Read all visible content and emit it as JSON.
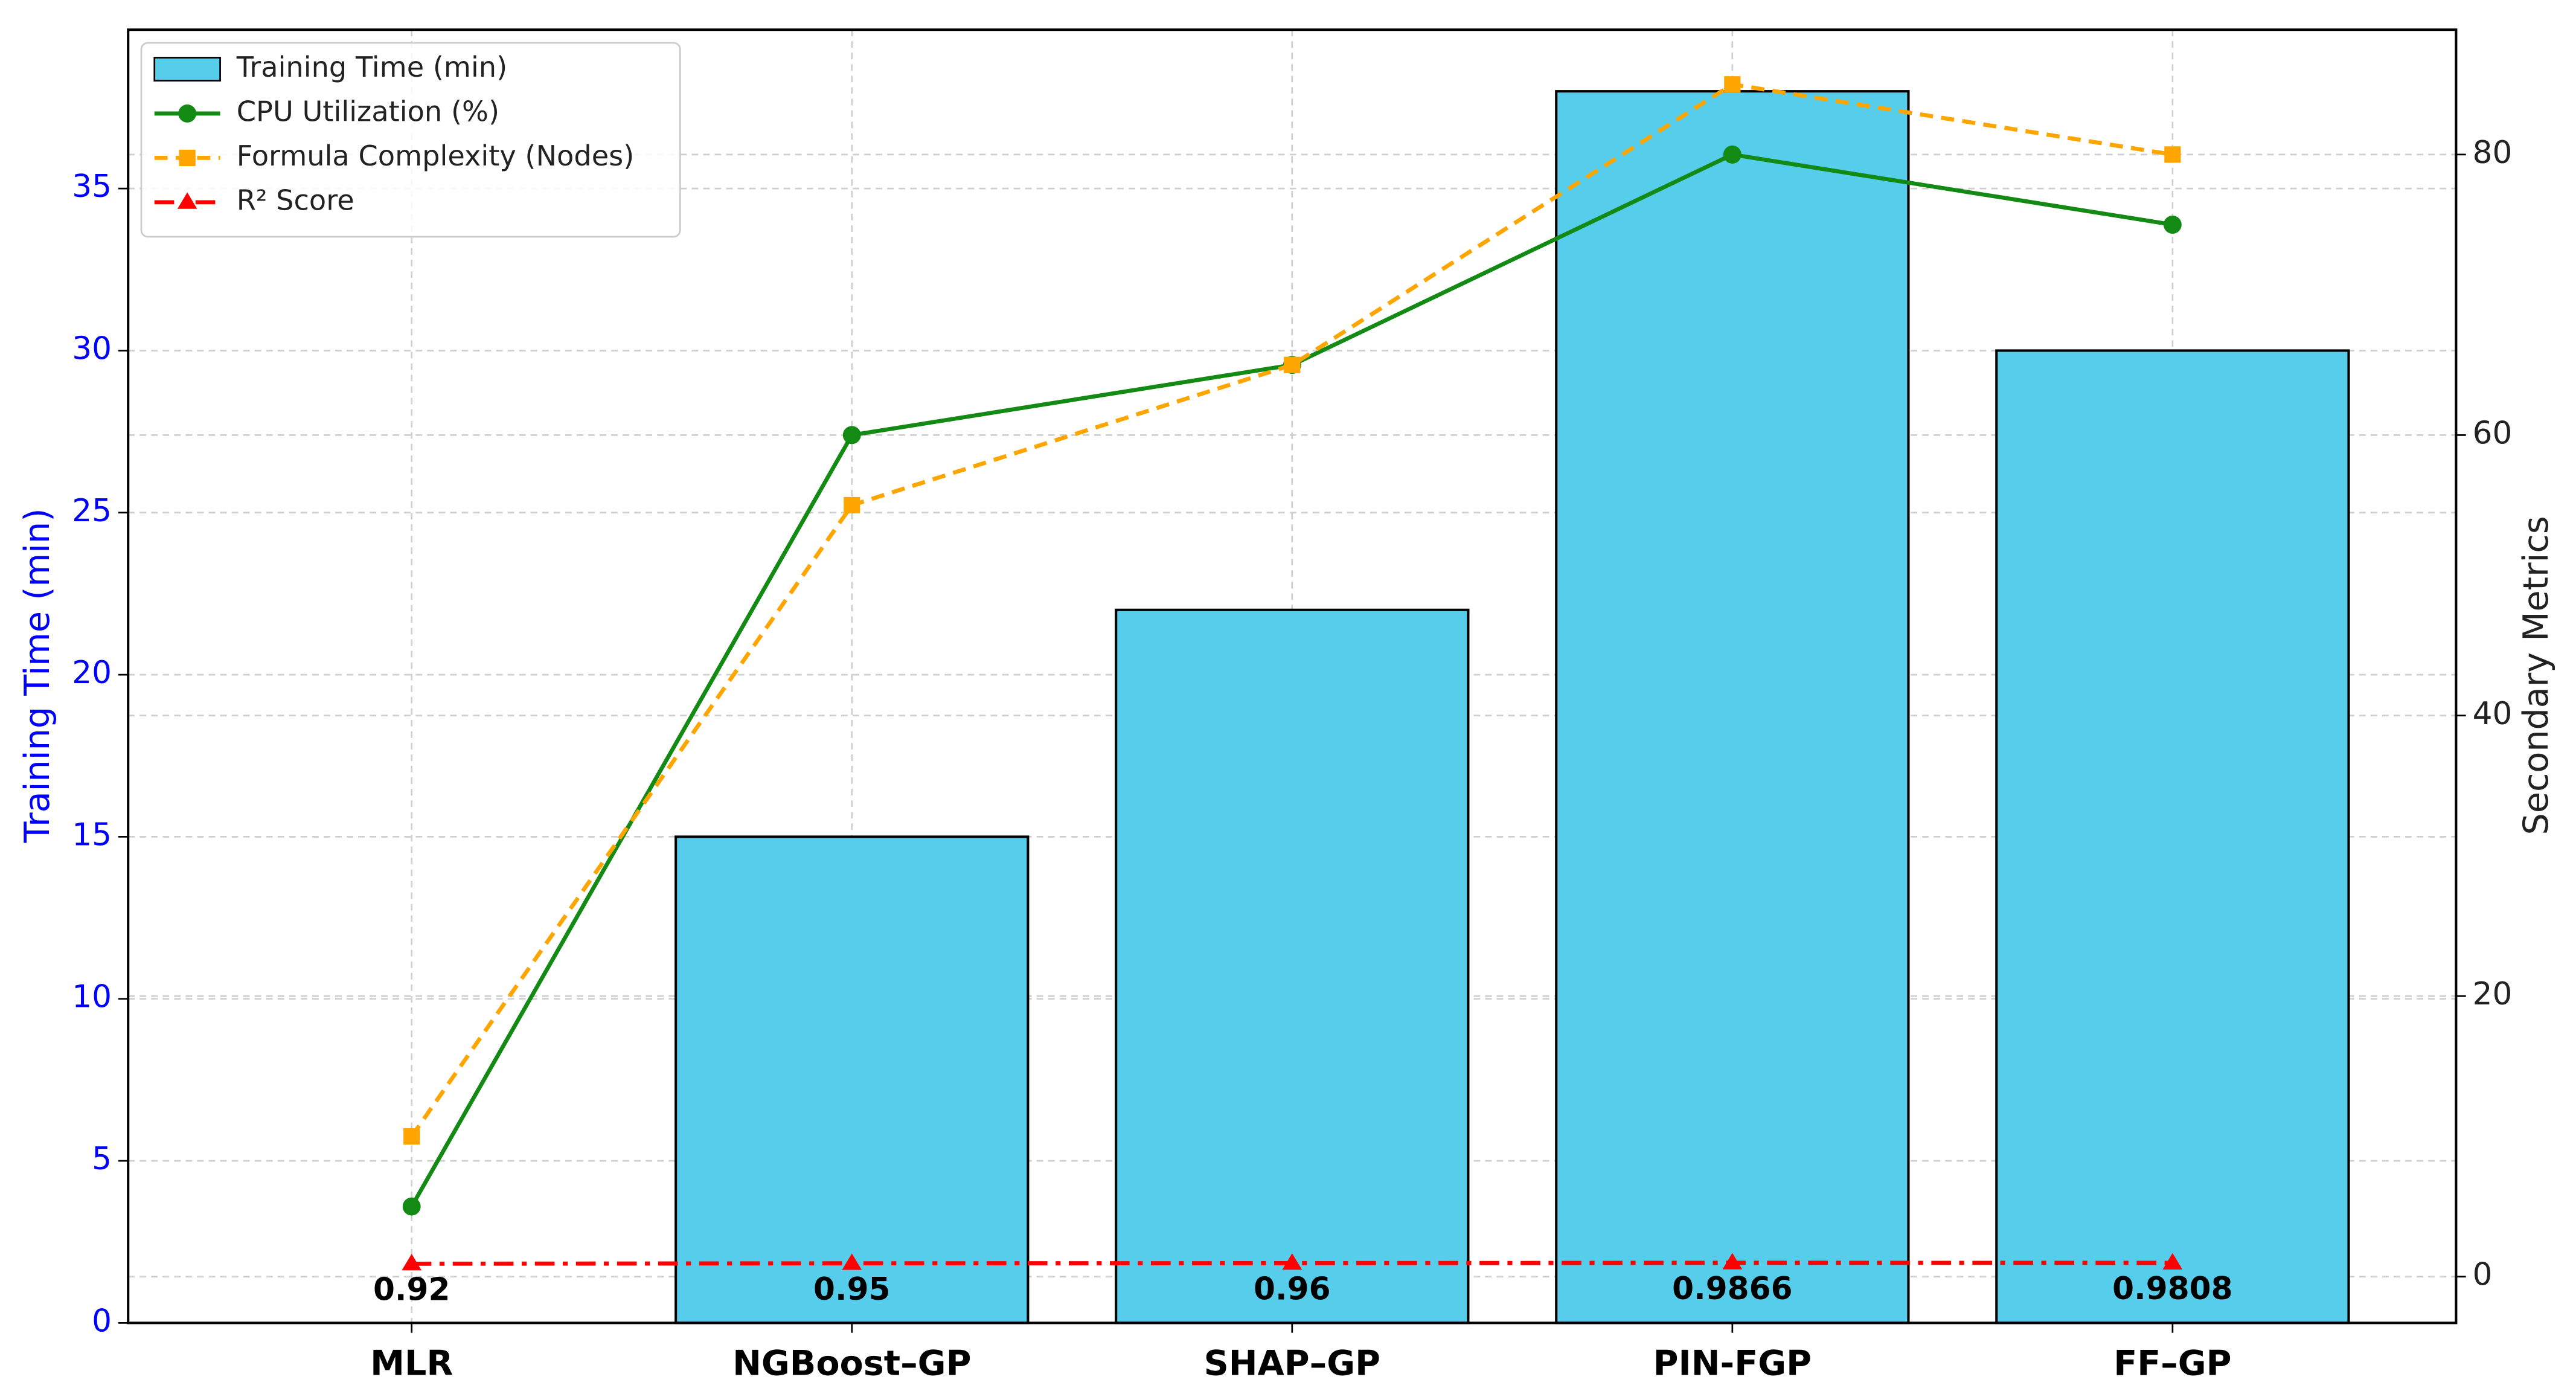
{
  "chart_data": {
    "type": "bar",
    "categories": [
      "MLR",
      "NGBoost–GP",
      "SHAP–GP",
      "PIN-FGP",
      "FF–GP"
    ],
    "series": [
      {
        "name": "Training Time (min)",
        "type": "bar",
        "color": "#56cdea",
        "axis": "y",
        "values": [
          0,
          15,
          22,
          38,
          30
        ]
      },
      {
        "name": "CPU Utilization (%)",
        "type": "line",
        "color": "#138a13",
        "axis": "y2",
        "linestyle": "solid",
        "marker": "circle",
        "values": [
          5,
          60,
          65,
          80,
          75
        ]
      },
      {
        "name": "Formula Complexity (Nodes)",
        "type": "line",
        "color": "#ffa500",
        "axis": "y2",
        "linestyle": "dashed",
        "marker": "square",
        "values": [
          10,
          55,
          65,
          85,
          80
        ]
      },
      {
        "name": "R² Score",
        "type": "line",
        "color": "#ff0000",
        "axis": "y2",
        "linestyle": "dashdot",
        "marker": "triangle",
        "data_labels": true,
        "values": [
          0.92,
          0.95,
          0.96,
          0.9866,
          0.9808
        ]
      }
    ],
    "ylabel": "Training Time (min)",
    "y2label": "Secondary Metrics",
    "ylim": [
      0,
      39.9
    ],
    "yticks": [
      0,
      5,
      10,
      15,
      20,
      25,
      30,
      35
    ],
    "y2lim": [
      -3.3,
      88.9
    ],
    "y2ticks": [
      0,
      20,
      40,
      60,
      80
    ],
    "grid": true,
    "legend": "upper left",
    "ylabel_color": "#0000ff"
  }
}
